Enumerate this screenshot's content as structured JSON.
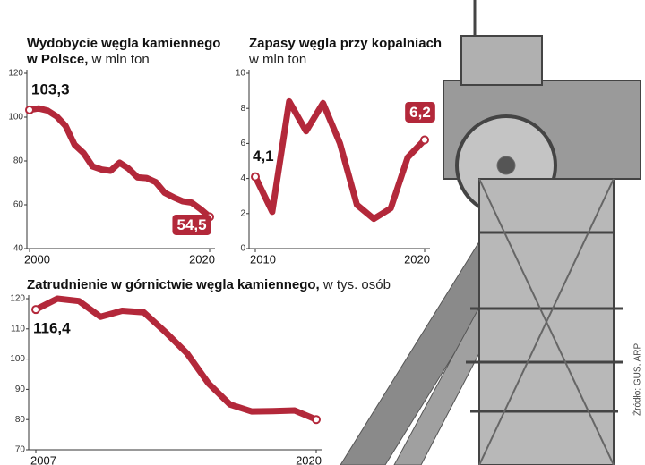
{
  "chart_data": [
    {
      "type": "line",
      "title": "Wydobycie węgla kamiennego w Polsce,",
      "subtitle": "w mln ton",
      "x": [
        2000,
        2001,
        2002,
        2003,
        2004,
        2005,
        2006,
        2007,
        2008,
        2009,
        2010,
        2011,
        2012,
        2013,
        2014,
        2015,
        2016,
        2017,
        2018,
        2019,
        2020
      ],
      "values": [
        103.3,
        104.0,
        103.0,
        100.4,
        96.0,
        87.4,
        83.6,
        77.5,
        76.1,
        75.5,
        79.2,
        76.5,
        72.5,
        72.2,
        70.4,
        65.5,
        63.4,
        61.6,
        61.0,
        58.0,
        54.5
      ],
      "value_labels": [
        "103,3",
        null,
        null,
        null,
        null,
        null,
        null,
        null,
        null,
        null,
        null,
        null,
        null,
        null,
        null,
        null,
        null,
        null,
        null,
        null,
        "54,5"
      ],
      "color": "#b3283a",
      "xlim": [
        2000,
        2020
      ],
      "xticks": [
        2000,
        2020
      ],
      "ylim": [
        40,
        120
      ],
      "yticks": [
        40,
        60,
        80,
        100,
        120
      ]
    },
    {
      "type": "line",
      "title": "Zapasy węgla przy kopalniach",
      "subtitle": "w mln ton",
      "x": [
        2010,
        2011,
        2012,
        2013,
        2014,
        2015,
        2016,
        2017,
        2018,
        2019,
        2020
      ],
      "values": [
        4.1,
        2.1,
        8.4,
        6.7,
        8.3,
        6.0,
        2.5,
        1.7,
        2.3,
        5.2,
        6.2
      ],
      "value_labels": [
        "4,1",
        null,
        null,
        null,
        null,
        null,
        null,
        null,
        null,
        null,
        "6,2"
      ],
      "color": "#b3283a",
      "xlim": [
        2010,
        2020
      ],
      "xticks": [
        2010,
        2020
      ],
      "ylim": [
        0,
        10
      ],
      "yticks": [
        0,
        2,
        4,
        6,
        8,
        10
      ]
    },
    {
      "type": "line",
      "title": "Zatrudnienie w górnictwie węgla kamiennego,",
      "subtitle": "w tys. osób",
      "x": [
        2007,
        2008,
        2009,
        2010,
        2011,
        2012,
        2013,
        2014,
        2015,
        2016,
        2017,
        2018,
        2019,
        2020
      ],
      "values": [
        116.4,
        120.0,
        119.2,
        114.0,
        116.0,
        115.5,
        109.0,
        102.0,
        92.0,
        85.0,
        82.7,
        82.8,
        83.0,
        80
      ],
      "value_labels": [
        "116,4",
        null,
        null,
        null,
        null,
        null,
        null,
        null,
        null,
        null,
        null,
        null,
        null,
        null
      ],
      "color": "#b3283a",
      "xlim": [
        2007,
        2020
      ],
      "xticks": [
        2007,
        2020
      ],
      "ylim": [
        70,
        120
      ],
      "yticks": [
        70,
        80,
        90,
        100,
        110,
        120
      ]
    }
  ],
  "source": "Źródło: GUS, ARP"
}
